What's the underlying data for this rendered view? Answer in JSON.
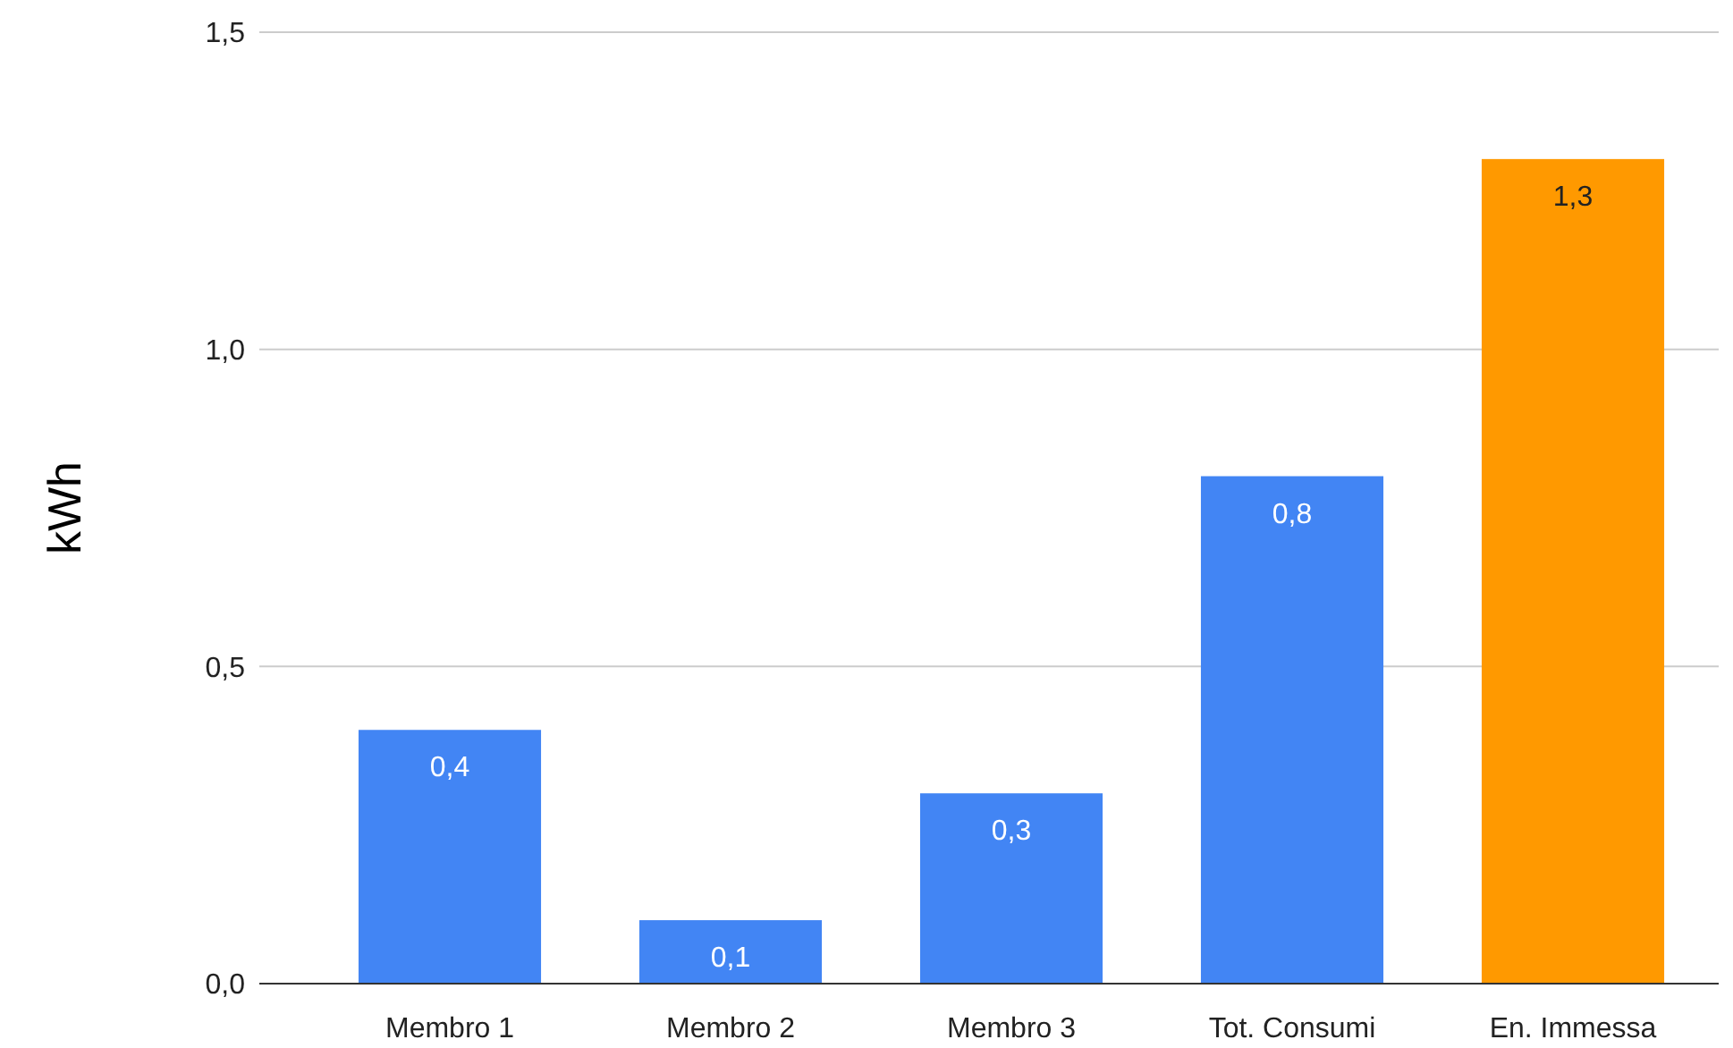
{
  "chart_data": {
    "type": "bar",
    "ylabel": "kWh",
    "categories": [
      "Membro 1",
      "Membro 2",
      "Membro 3",
      "Tot. Consumi",
      "En. Immessa"
    ],
    "values": [
      0.4,
      0.1,
      0.3,
      0.8,
      1.3
    ],
    "colors": [
      "#4285f4",
      "#4285f4",
      "#4285f4",
      "#4285f4",
      "#ff9900"
    ],
    "value_labels": [
      "0,4",
      "0,1",
      "0,3",
      "0,8",
      "1,3"
    ],
    "ylim": [
      0,
      1.5
    ],
    "yticks": [
      {
        "value": 0,
        "label": "0,0"
      },
      {
        "value": 0.5,
        "label": "0,5"
      },
      {
        "value": 1,
        "label": "1,0"
      },
      {
        "value": 1.5,
        "label": "1,5"
      }
    ],
    "grid": "y"
  }
}
